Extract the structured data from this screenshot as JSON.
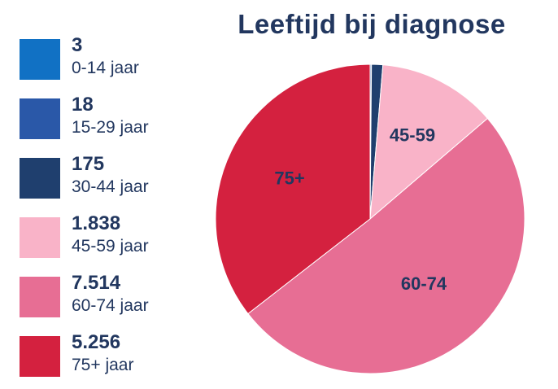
{
  "chart_data": {
    "type": "pie",
    "title": "Leeftijd bij diagnose",
    "slices": [
      {
        "count": "3",
        "legend_label": "0-14 jaar",
        "value": 3,
        "color": "#1171c4",
        "slice_label": ""
      },
      {
        "count": "18",
        "legend_label": "15-29 jaar",
        "value": 18,
        "color": "#2a58a8",
        "slice_label": ""
      },
      {
        "count": "175",
        "legend_label": "30-44 jaar",
        "value": 175,
        "color": "#1f3f6e",
        "slice_label": ""
      },
      {
        "count": "1.838",
        "legend_label": "45-59 jaar",
        "value": 1838,
        "color": "#f9b3c8",
        "slice_label": "45-59"
      },
      {
        "count": "7.514",
        "legend_label": "60-74 jaar",
        "value": 7514,
        "color": "#e76e94",
        "slice_label": "60-74"
      },
      {
        "count": "5.256",
        "legend_label": "75+ jaar",
        "value": 5256,
        "color": "#d4213f",
        "slice_label": "75+"
      }
    ],
    "legend_placement": "left",
    "start_angle": "top",
    "direction": "clockwise"
  }
}
